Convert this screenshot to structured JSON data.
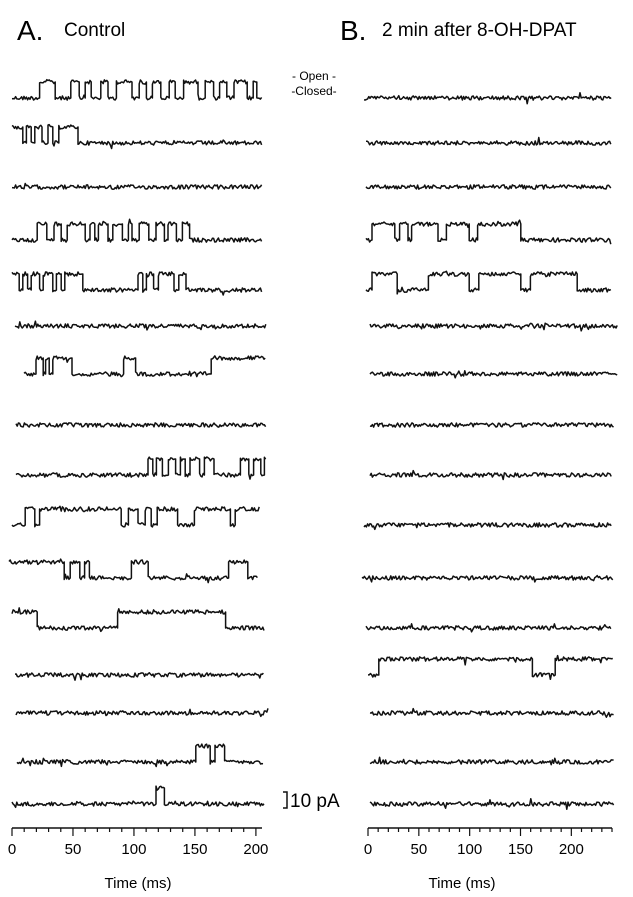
{
  "chart_data": [
    {
      "type": "line",
      "panel_letter": "A.",
      "title": "Control",
      "xlabel": "Time (ms)",
      "xlim": [
        0,
        205
      ],
      "xticks": [
        0,
        50,
        100,
        150,
        200
      ],
      "trace_color": "#111111",
      "series": [
        {
          "events": [
            [
              22,
              35
            ],
            [
              48,
              55
            ],
            [
              60,
              64
            ],
            [
              72,
              78
            ],
            [
              85,
              98
            ],
            [
              104,
              110
            ],
            [
              115,
              122
            ],
            [
              128,
              133
            ],
            [
              140,
              152
            ],
            [
              158,
              165
            ],
            [
              170,
              176
            ],
            [
              182,
              192
            ],
            [
              197,
              200
            ]
          ],
          "amp": 2
        },
        {
          "events": [
            [
              0,
              8
            ],
            [
              11,
              15
            ],
            [
              18,
              24
            ],
            [
              29,
              33
            ],
            [
              38,
              54
            ]
          ],
          "amp": 2
        },
        {
          "events": [],
          "amp": 2
        },
        {
          "events": [
            [
              20,
              28
            ],
            [
              34,
              40
            ],
            [
              45,
              60
            ],
            [
              63,
              67
            ],
            [
              70,
              78
            ],
            [
              82,
              90
            ],
            [
              95,
              98
            ],
            [
              104,
              112
            ],
            [
              118,
              124
            ],
            [
              127,
              134
            ],
            [
              139,
              145
            ]
          ],
          "amp": 2
        },
        {
          "events": [
            [
              0,
              5
            ],
            [
              8,
              12
            ],
            [
              15,
              22
            ],
            [
              25,
              33
            ],
            [
              36,
              40
            ],
            [
              43,
              58
            ],
            [
              103,
              107
            ],
            [
              110,
              116
            ],
            [
              120,
              132
            ],
            [
              136,
              142
            ]
          ],
          "amp": 2
        },
        {
          "events": [],
          "amp": 2
        },
        {
          "events": [
            [
              10,
              16
            ],
            [
              18,
              21
            ],
            [
              24,
              40
            ],
            [
              84,
              94
            ],
            [
              158,
              205
            ]
          ],
          "amp": 2
        },
        {
          "events": [],
          "amp": 2
        },
        {
          "events": [
            [
              108,
              112
            ],
            [
              115,
              120
            ],
            [
              124,
              130
            ],
            [
              134,
              138
            ],
            [
              142,
              150
            ],
            [
              154,
              162
            ],
            [
              184,
              190
            ],
            [
              194,
              200
            ],
            [
              203,
              205
            ]
          ],
          "amp": 2
        },
        {
          "events": [
            [
              10,
              18
            ],
            [
              22,
              90
            ],
            [
              96,
              104
            ],
            [
              110,
              115
            ],
            [
              120,
              136
            ],
            [
              150,
              180
            ],
            [
              184,
              205
            ]
          ],
          "amp": 2
        },
        {
          "events": [
            [
              0,
              45
            ],
            [
              50,
              58
            ],
            [
              62,
              66
            ],
            [
              100,
              114
            ],
            [
              180,
              196
            ]
          ],
          "amp": 2
        },
        {
          "events": [
            [
              0,
              20
            ],
            [
              85,
              173
            ]
          ],
          "amp": 2
        },
        {
          "events": [],
          "amp": 2
        },
        {
          "events": [],
          "amp": 2
        },
        {
          "events": [
            [
              148,
              160
            ],
            [
              164,
              172
            ]
          ],
          "amp": 2
        },
        {
          "events": [
            [
              117,
              123
            ]
          ],
          "amp": 2
        }
      ]
    },
    {
      "type": "line",
      "panel_letter": "B.",
      "title": "2 min after 8-OH-DPAT",
      "xlabel": "Time (ms)",
      "xlim": [
        0,
        240
      ],
      "xticks": [
        0,
        50,
        100,
        150,
        200
      ],
      "trace_color": "#111111",
      "series": [
        {
          "events": [],
          "amp": 2
        },
        {
          "events": [],
          "amp": 2
        },
        {
          "events": [],
          "amp": 2
        },
        {
          "events": [
            [
              5,
              28
            ],
            [
              32,
              40
            ],
            [
              44,
              70
            ],
            [
              78,
              100
            ],
            [
              108,
              150
            ]
          ],
          "amp": 2
        },
        {
          "events": [
            [
              5,
              30
            ],
            [
              60,
              100
            ],
            [
              110,
              150
            ],
            [
              160,
              205
            ]
          ],
          "amp": 2
        },
        {
          "events": [],
          "amp": 2
        },
        {
          "events": [],
          "amp": 2
        },
        {
          "events": [],
          "amp": 2
        },
        {
          "events": [],
          "amp": 2
        },
        {
          "events": [],
          "amp": 2
        },
        {
          "events": [],
          "amp": 2
        },
        {
          "events": [],
          "amp": 2
        },
        {
          "events": [
            [
              10,
              160
            ],
            [
              182,
              240
            ]
          ],
          "amp": 2
        },
        {
          "events": [],
          "amp": 2
        },
        {
          "events": [],
          "amp": 2
        },
        {
          "events": [],
          "amp": 2
        }
      ]
    }
  ],
  "state_labels": {
    "open": "- Open -",
    "closed": "-Closed-"
  },
  "scale_bar": {
    "value": 10,
    "label": "10 pA"
  }
}
